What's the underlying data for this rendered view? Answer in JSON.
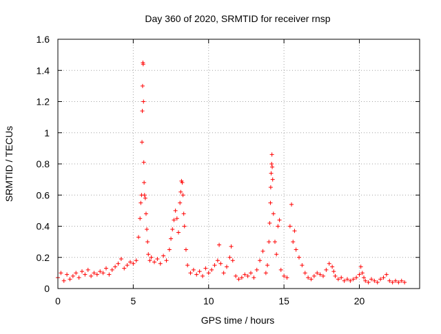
{
  "chart_data": {
    "type": "scatter",
    "title": "Day 360 of 2020, SRMTID for receiver rnsp",
    "xlabel": "GPS time / hours",
    "ylabel": "SRMTID / TECUs",
    "xlim": [
      0,
      24
    ],
    "ylim": [
      0,
      1.6
    ],
    "xticks": [
      0,
      5,
      10,
      15,
      20
    ],
    "xtick_labels": [
      "0",
      "5",
      "10",
      "15",
      "20"
    ],
    "yticks": [
      0,
      0.2,
      0.4,
      0.6,
      0.8,
      1,
      1.2,
      1.4,
      1.6
    ],
    "ytick_labels": [
      "0",
      "0.2",
      "0.4",
      "0.6",
      "0.8",
      "1",
      "1.2",
      "1.4",
      "1.6"
    ],
    "grid": true,
    "marker": "+",
    "colors": {
      "series": "#ff0000",
      "grid": "#a0a0a0",
      "frame": "#000000"
    },
    "series": [
      {
        "name": "SRMTID",
        "x": [
          0.0,
          0.2,
          0.4,
          0.6,
          0.8,
          1.0,
          1.2,
          1.4,
          1.6,
          1.8,
          2.0,
          2.2,
          2.4,
          2.6,
          2.8,
          3.0,
          3.2,
          3.4,
          3.6,
          3.8,
          4.0,
          4.2,
          4.4,
          4.6,
          4.8,
          5.0,
          5.2,
          5.35,
          5.45,
          5.5,
          5.55,
          5.58,
          5.6,
          5.62,
          5.64,
          5.66,
          5.68,
          5.7,
          5.72,
          5.75,
          5.8,
          5.85,
          5.9,
          5.95,
          6.0,
          6.1,
          6.2,
          6.4,
          6.6,
          6.8,
          7.0,
          7.2,
          7.4,
          7.5,
          7.6,
          7.7,
          7.8,
          7.9,
          8.0,
          8.1,
          8.15,
          8.2,
          8.25,
          8.3,
          8.35,
          8.4,
          8.5,
          8.6,
          8.8,
          9.0,
          9.2,
          9.4,
          9.6,
          9.8,
          10.0,
          10.2,
          10.4,
          10.6,
          10.7,
          10.8,
          11.0,
          11.2,
          11.4,
          11.5,
          11.6,
          11.8,
          12.0,
          12.2,
          12.4,
          12.6,
          12.8,
          13.0,
          13.2,
          13.4,
          13.6,
          13.8,
          13.9,
          14.0,
          14.05,
          14.1,
          14.12,
          14.15,
          14.18,
          14.2,
          14.22,
          14.25,
          14.3,
          14.4,
          14.5,
          14.6,
          14.7,
          14.8,
          15.0,
          15.2,
          15.4,
          15.5,
          15.6,
          15.7,
          15.8,
          16.0,
          16.2,
          16.4,
          16.6,
          16.8,
          17.0,
          17.2,
          17.4,
          17.6,
          17.8,
          18.0,
          18.2,
          18.3,
          18.4,
          18.6,
          18.8,
          19.0,
          19.2,
          19.4,
          19.6,
          19.8,
          20.0,
          20.1,
          20.2,
          20.3,
          20.4,
          20.6,
          20.8,
          21.0,
          21.2,
          21.4,
          21.6,
          21.8,
          22.0,
          22.2,
          22.4,
          22.6,
          22.8,
          23.0
        ],
        "y": [
          0.07,
          0.1,
          0.05,
          0.09,
          0.06,
          0.08,
          0.1,
          0.07,
          0.11,
          0.09,
          0.12,
          0.08,
          0.1,
          0.09,
          0.11,
          0.1,
          0.13,
          0.09,
          0.12,
          0.14,
          0.16,
          0.19,
          0.13,
          0.15,
          0.17,
          0.16,
          0.18,
          0.33,
          0.45,
          0.55,
          0.6,
          0.94,
          1.14,
          1.3,
          1.45,
          1.44,
          1.2,
          0.81,
          0.68,
          0.6,
          0.58,
          0.48,
          0.38,
          0.3,
          0.22,
          0.18,
          0.2,
          0.17,
          0.19,
          0.16,
          0.21,
          0.18,
          0.25,
          0.32,
          0.38,
          0.44,
          0.5,
          0.45,
          0.36,
          0.55,
          0.62,
          0.69,
          0.68,
          0.6,
          0.48,
          0.4,
          0.25,
          0.15,
          0.1,
          0.12,
          0.09,
          0.11,
          0.08,
          0.13,
          0.1,
          0.12,
          0.15,
          0.18,
          0.28,
          0.16,
          0.1,
          0.14,
          0.2,
          0.27,
          0.18,
          0.08,
          0.06,
          0.07,
          0.09,
          0.08,
          0.1,
          0.07,
          0.12,
          0.18,
          0.24,
          0.1,
          0.15,
          0.3,
          0.42,
          0.55,
          0.65,
          0.74,
          0.8,
          0.86,
          0.78,
          0.7,
          0.48,
          0.3,
          0.22,
          0.4,
          0.44,
          0.12,
          0.08,
          0.07,
          0.4,
          0.54,
          0.3,
          0.37,
          0.25,
          0.2,
          0.15,
          0.1,
          0.07,
          0.06,
          0.08,
          0.1,
          0.09,
          0.08,
          0.12,
          0.16,
          0.14,
          0.11,
          0.08,
          0.06,
          0.07,
          0.05,
          0.06,
          0.05,
          0.06,
          0.07,
          0.09,
          0.14,
          0.1,
          0.07,
          0.05,
          0.04,
          0.06,
          0.05,
          0.04,
          0.06,
          0.07,
          0.09,
          0.05,
          0.04,
          0.05,
          0.04,
          0.05,
          0.04
        ]
      }
    ]
  }
}
